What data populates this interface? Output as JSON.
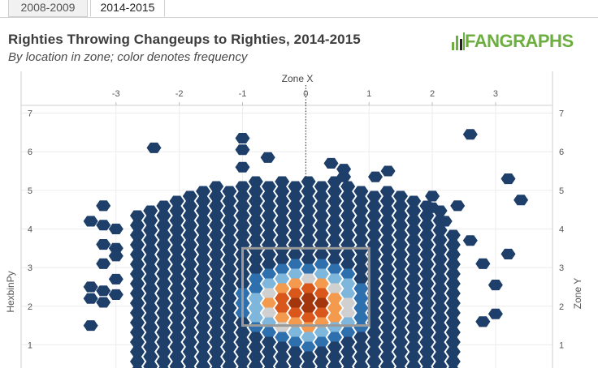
{
  "tabs": [
    {
      "label": "2008-2009",
      "active": false
    },
    {
      "label": "2014-2015",
      "active": true
    }
  ],
  "header": {
    "title": "Righties Throwing Changeups to Righties, 2014-2015",
    "subtitle": "By location in zone; color denotes frequency",
    "logo_text": "FANGRAPHS",
    "logo_color": "#6cae3f"
  },
  "chart_data": {
    "type": "heatmap",
    "xlabel": "Zone X",
    "ylabel": "HexbinPy",
    "ylabel_right": "Zone Y",
    "x_ticks": [
      -3,
      -2,
      -1,
      0,
      1,
      2,
      3
    ],
    "y_ticks": [
      1,
      2,
      3,
      4,
      5,
      6,
      7
    ],
    "xlim": [
      -4.5,
      3.9
    ],
    "ylim": [
      0.4,
      7.2
    ],
    "strike_zone": {
      "x": [
        -1,
        1
      ],
      "y": [
        1.5,
        3.5
      ]
    },
    "center_line_x": 0,
    "colors": {
      "low": "#1f3f6b",
      "mid_low": "#2e6fae",
      "mid": "#7fb7dc",
      "neutral": "#d0d0d0",
      "mid_high": "#f39a4e",
      "high": "#d9571a",
      "peak": "#a3360c"
    },
    "outliers": [
      {
        "x": -3.4,
        "y": 4.2
      },
      {
        "x": -3.2,
        "y": 4.6
      },
      {
        "x": -3.2,
        "y": 4.1
      },
      {
        "x": -3.0,
        "y": 4.0
      },
      {
        "x": -3.2,
        "y": 3.6
      },
      {
        "x": -3.0,
        "y": 3.5
      },
      {
        "x": -3.2,
        "y": 3.1
      },
      {
        "x": -3.0,
        "y": 3.3
      },
      {
        "x": -3.4,
        "y": 2.5
      },
      {
        "x": -3.4,
        "y": 2.2
      },
      {
        "x": -3.2,
        "y": 2.4
      },
      {
        "x": -3.2,
        "y": 2.1
      },
      {
        "x": -3.0,
        "y": 2.3
      },
      {
        "x": -3.0,
        "y": 2.7
      },
      {
        "x": -3.4,
        "y": 1.5
      },
      {
        "x": -2.4,
        "y": 6.1
      },
      {
        "x": -1.0,
        "y": 6.35
      },
      {
        "x": -1.0,
        "y": 6.05
      },
      {
        "x": -0.6,
        "y": 5.85
      },
      {
        "x": -1.0,
        "y": 5.6
      },
      {
        "x": 0.6,
        "y": 5.35
      },
      {
        "x": 0.4,
        "y": 5.7
      },
      {
        "x": 0.6,
        "y": 5.55
      },
      {
        "x": 1.1,
        "y": 5.35
      },
      {
        "x": 1.3,
        "y": 5.5
      },
      {
        "x": 2.0,
        "y": 4.85
      },
      {
        "x": 2.6,
        "y": 6.45
      },
      {
        "x": 3.2,
        "y": 5.3
      },
      {
        "x": 3.4,
        "y": 4.75
      },
      {
        "x": 2.4,
        "y": 4.6
      },
      {
        "x": 2.0,
        "y": 4.55
      },
      {
        "x": 2.2,
        "y": 4.2
      },
      {
        "x": 2.6,
        "y": 3.7
      },
      {
        "x": 2.8,
        "y": 3.1
      },
      {
        "x": 3.2,
        "y": 3.35
      },
      {
        "x": 3.0,
        "y": 2.55
      },
      {
        "x": 3.0,
        "y": 1.8
      },
      {
        "x": 2.8,
        "y": 1.6
      }
    ]
  }
}
